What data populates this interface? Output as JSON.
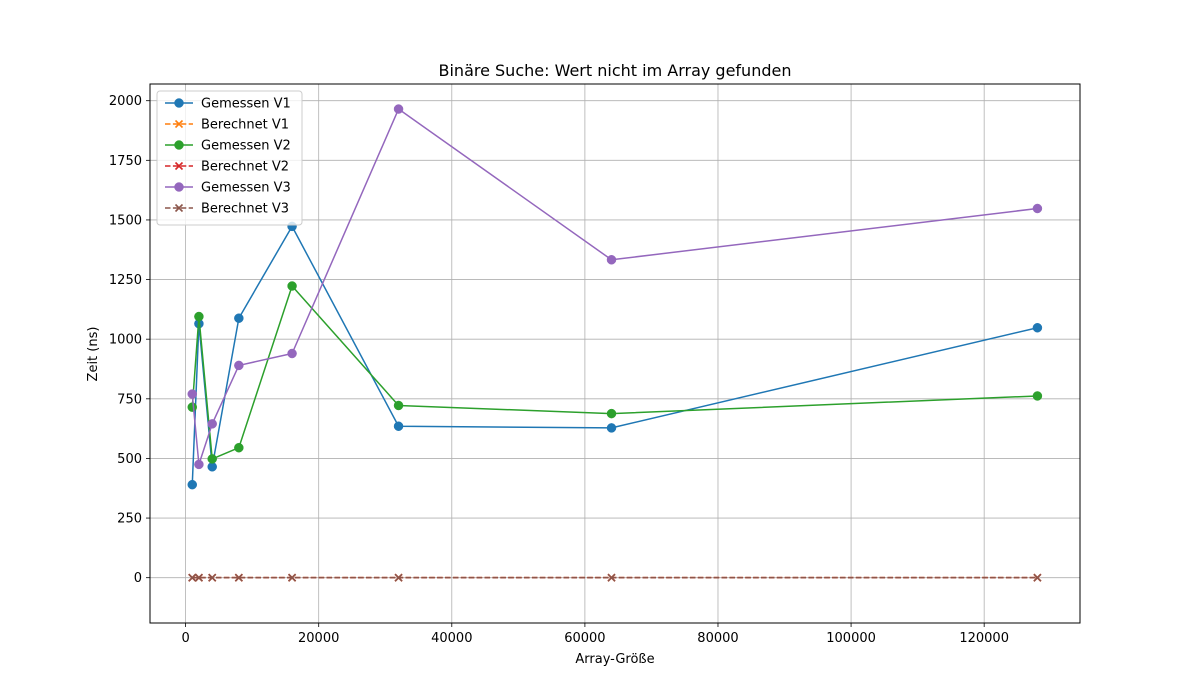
{
  "chart_data": {
    "type": "line",
    "title": "Binäre Suche: Wert nicht im Array gefunden",
    "xlabel": "Array-Größe",
    "ylabel": "Zeit (ns)",
    "xlim": [
      -5350,
      134400
    ],
    "ylim": [
      -190,
      2070
    ],
    "xticks": [
      0,
      20000,
      40000,
      60000,
      80000,
      100000,
      120000
    ],
    "xtick_labels": [
      "0",
      "20000",
      "40000",
      "60000",
      "80000",
      "100000",
      "120000"
    ],
    "yticks": [
      0,
      250,
      500,
      750,
      1000,
      1250,
      1500,
      1750,
      2000
    ],
    "ytick_labels": [
      "0",
      "250",
      "500",
      "750",
      "1000",
      "1250",
      "1500",
      "1750",
      "2000"
    ],
    "grid": true,
    "legend_position": "top-left",
    "x": [
      1000,
      2000,
      4000,
      8000,
      16000,
      32000,
      64000,
      128000
    ],
    "series": [
      {
        "name": "Gemessen V1",
        "color": "#1f77b4",
        "marker": "circle",
        "linestyle": "solid",
        "values": [
          390,
          1065,
          465,
          1088,
          1473,
          635,
          628,
          1048
        ]
      },
      {
        "name": "Berechnet V1",
        "color": "#ff7f0e",
        "marker": "x",
        "linestyle": "dashed",
        "values": [
          0.1,
          0.1,
          0.1,
          0.1,
          0.2,
          0.2,
          0.2,
          0.2
        ]
      },
      {
        "name": "Gemessen V2",
        "color": "#2ca02c",
        "marker": "circle",
        "linestyle": "solid",
        "values": [
          715,
          1095,
          498,
          545,
          1223,
          722,
          688,
          762
        ]
      },
      {
        "name": "Berechnet V2",
        "color": "#d62728",
        "marker": "x",
        "linestyle": "dashed",
        "values": [
          0.1,
          0.1,
          0.1,
          0.1,
          0.2,
          0.2,
          0.2,
          0.2
        ]
      },
      {
        "name": "Gemessen V3",
        "color": "#9467bd",
        "marker": "circle",
        "linestyle": "solid",
        "values": [
          770,
          475,
          645,
          890,
          940,
          1965,
          1333,
          1548
        ]
      },
      {
        "name": "Berechnet V3",
        "color": "#8c564b",
        "marker": "x",
        "linestyle": "dashed",
        "values": [
          0.1,
          0.1,
          0.1,
          0.1,
          0.2,
          0.2,
          0.2,
          0.2
        ]
      }
    ]
  }
}
